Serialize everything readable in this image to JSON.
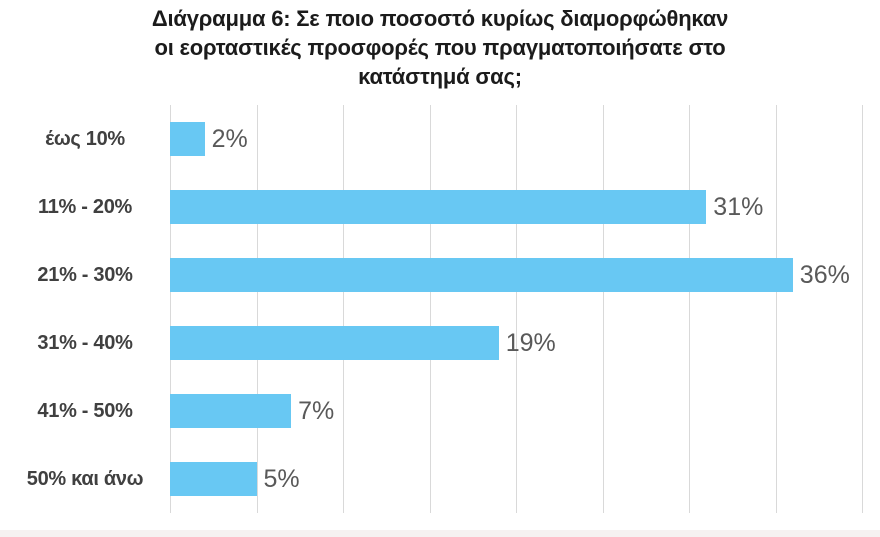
{
  "chart_data": {
    "type": "bar",
    "orientation": "horizontal",
    "title": "Διάγραμμα 6: Σε ποιο ποσοστό κυρίως διαμορφώθηκαν οι εορταστικές προσφορές που πραγματοποιήσατε στο κατάστημά σας;",
    "title_lines": [
      "Διάγραμμα 6: Σε ποιο ποσοστό κυρίως διαμορφώθηκαν",
      "οι εορταστικές προσφορές που πραγματοποιήσατε στο",
      "κατάστημά σας;"
    ],
    "categories": [
      "έως 10%",
      "11% - 20%",
      "21% - 30%",
      "31% - 40%",
      "41% - 50%",
      "50% και άνω"
    ],
    "values": [
      2,
      31,
      36,
      19,
      7,
      5
    ],
    "value_labels": [
      "2%",
      "31%",
      "36%",
      "19%",
      "7%",
      "5%"
    ],
    "xlabel": "",
    "ylabel": "",
    "xlim": [
      0,
      40
    ],
    "gridline_step": 5,
    "grid": true,
    "legend": false,
    "colors": {
      "bar": "#68C8F3",
      "gridline": "#D9D9D9",
      "title": "#1B1B1B",
      "category_label": "#404040",
      "value_label": "#595959",
      "background": "#FFFFFF",
      "bottom_strip": "#F6F1F1"
    }
  }
}
